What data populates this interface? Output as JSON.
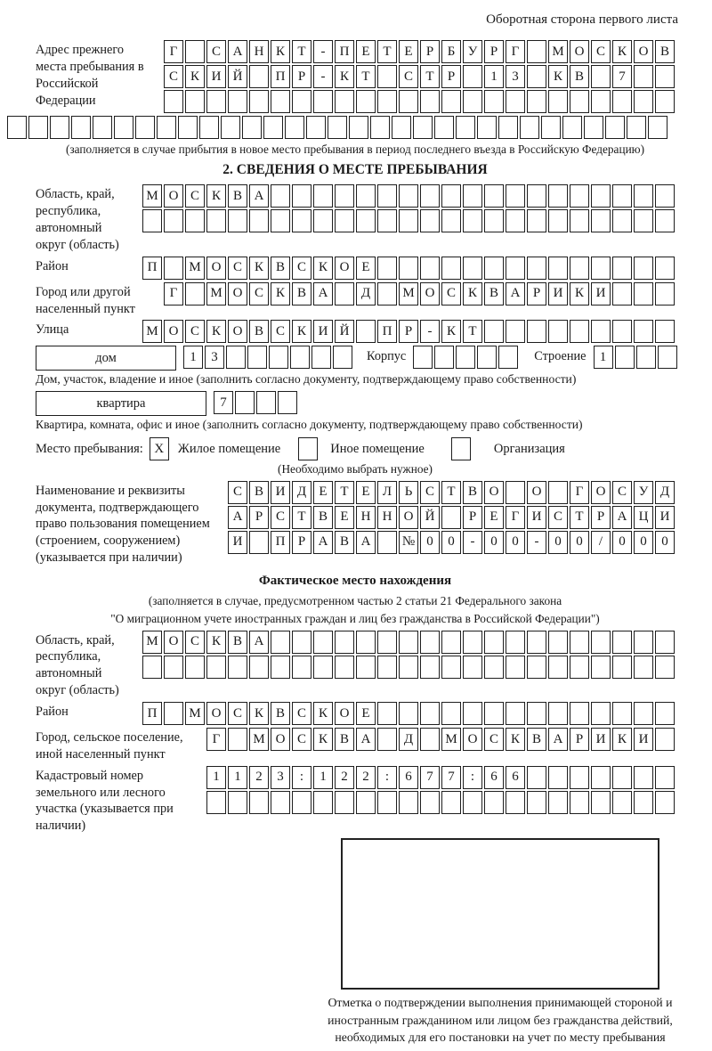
{
  "page": {
    "header_note": "Оборотная сторона первого листа"
  },
  "prev_address": {
    "label": "Адрес прежнего места пребывания в Российской Федерации",
    "rows": [
      {
        "n": 24,
        "text": "Г САНКТ-ПЕТЕРБУРГ МОСКОВ"
      },
      {
        "n": 24,
        "text": "СКИЙ ПР-КТ СТР 13 КВ 7"
      },
      {
        "n": 24,
        "text": ""
      },
      {
        "n": 31,
        "text": ""
      }
    ],
    "note": "(заполняется в случае прибытия в новое место пребывания в период последнего въезда в Российскую Федерацию)"
  },
  "section2": {
    "title": "2. СВЕДЕНИЯ О МЕСТЕ ПРЕБЫВАНИЯ",
    "oblast": {
      "label": "Область, край, республика, автономный округ (область)",
      "rows": [
        {
          "n": 25,
          "text": "МОСКВА"
        },
        {
          "n": 25,
          "text": ""
        }
      ]
    },
    "raion": {
      "label": "Район",
      "row": {
        "n": 25,
        "text": "П МОСКВСКОЕ"
      }
    },
    "gorod": {
      "label": "Город или другой населенный пункт",
      "row": {
        "n": 24,
        "text": "Г МОСКВА Д МОСКВАРИКИ"
      }
    },
    "ulitsa": {
      "label": "Улица",
      "row": {
        "n": 25,
        "text": "МОСКОВСКИЙ ПР-КТ"
      }
    },
    "dom_row": {
      "dom_label": "дом",
      "dom_cells": {
        "n": 8,
        "text": "13"
      },
      "korpus_label": "Корпус",
      "korpus_cells": {
        "n": 5,
        "text": ""
      },
      "stroenie_label": "Строение",
      "stroenie_cells": {
        "n": 4,
        "text": "1"
      }
    },
    "dom_note": "Дом, участок, владение и иное (заполнить согласно документу, подтверждающему право собственности)",
    "kvartira_row": {
      "label": "квартира",
      "cells": {
        "n": 4,
        "text": "7"
      }
    },
    "kvartira_note": "Квартира, комната, офис и иное (заполнить согласно документу, подтверждающему право собственности)",
    "mesto": {
      "label": "Место пребывания:",
      "zhiloe_cb": {
        "n": 1,
        "text": "X"
      },
      "zhiloe_label": "Жилое помещение",
      "inoe_cb": {
        "n": 1,
        "text": ""
      },
      "inoe_label": "Иное помещение",
      "org_cb": {
        "n": 1,
        "text": ""
      },
      "org_label": "Организация",
      "note": "(Необходимо выбрать нужное)"
    },
    "document": {
      "label": "Наименование и реквизиты документа, подтверждающего право пользования помещением (строением, сооружением) (указывается при наличии)",
      "rows": [
        {
          "n": 21,
          "text": "СВИДЕТЕЛЬСТВО О ГОСУД"
        },
        {
          "n": 21,
          "text": "АРСТВЕННОЙ РЕГИСТРАЦИ"
        },
        {
          "n": 21,
          "text": "И ПРАВА №00-00-00/000"
        }
      ]
    }
  },
  "fact": {
    "title": "Фактическое место нахождения",
    "note1": "(заполняется в случае, предусмотренном частью 2 статьи 21 Федерального закона",
    "note2": "\"О миграционном учете иностранных граждан и лиц без гражданства в Российской Федерации\")",
    "oblast": {
      "label": "Область, край, республика, автономный округ (область)",
      "rows": [
        {
          "n": 25,
          "text": "МОСКВА"
        },
        {
          "n": 25,
          "text": ""
        }
      ]
    },
    "raion": {
      "label": "Район",
      "row": {
        "n": 25,
        "text": "П МОСКВСКОЕ"
      }
    },
    "gorod": {
      "label": "Город, сельское поселение, иной населенный пункт",
      "row": {
        "n": 22,
        "text": "Г МОСКВА Д МОСКВАРИКИ"
      }
    },
    "kadastr": {
      "label": "Кадастровый номер земельного или лесного участка (указывается при наличии)",
      "rows": [
        {
          "n": 22,
          "text": "1123:122:677:66"
        },
        {
          "n": 22,
          "text": ""
        }
      ]
    },
    "stamp_caption": "Отметка о подтверждении выполнения принимающей стороной и иностранным гражданином или лицом без гражданства действий, необходимых для его постановки на учет по месту пребывания"
  }
}
